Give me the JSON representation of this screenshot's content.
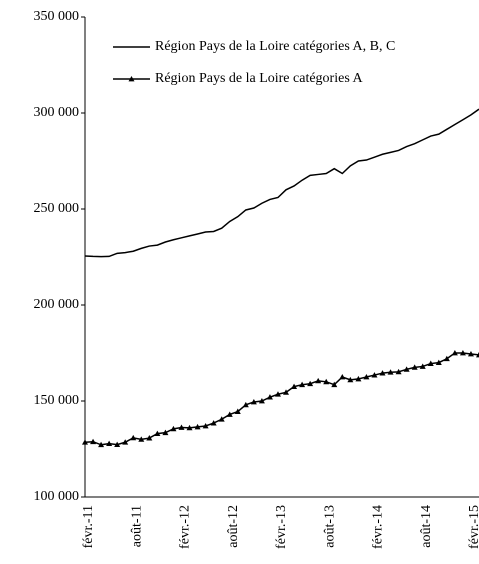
{
  "chart_data": {
    "type": "line",
    "categories": [
      "févr.-11",
      null,
      null,
      null,
      null,
      null,
      "août-11",
      null,
      null,
      null,
      null,
      null,
      "févr.-12",
      null,
      null,
      null,
      null,
      null,
      "août-12",
      null,
      null,
      null,
      null,
      null,
      "févr.-13",
      null,
      null,
      null,
      null,
      null,
      "août-13",
      null,
      null,
      null,
      null,
      null,
      "févr.-14",
      null,
      null,
      null,
      null,
      null,
      "août-14",
      null,
      null,
      null,
      null,
      null,
      "févr.-15",
      null
    ],
    "series": [
      {
        "name": "Région Pays de la Loire catégories A, B, C",
        "color": "#000000",
        "marker": "none",
        "values": [
          225500,
          225300,
          225200,
          225300,
          226900,
          227300,
          228000,
          229500,
          230700,
          231200,
          232800,
          234000,
          235000,
          236000,
          237000,
          238000,
          238300,
          240000,
          243500,
          246000,
          249500,
          250500,
          253000,
          255000,
          256000,
          260000,
          262000,
          265000,
          267500,
          268000,
          268500,
          271000,
          268500,
          272500,
          275000,
          275500,
          277000,
          278500,
          279500,
          280500,
          282500,
          284000,
          286000,
          288000,
          289000,
          291500,
          294000,
          296500,
          299000,
          302000
        ]
      },
      {
        "name": "Région Pays de la Loire catégories A",
        "color": "#000000",
        "marker": "triangle",
        "values": [
          128500,
          128800,
          127200,
          127800,
          127300,
          128500,
          130800,
          130000,
          130700,
          133000,
          133500,
          135500,
          136200,
          136000,
          136500,
          137000,
          138500,
          140500,
          143000,
          144500,
          148000,
          149500,
          150000,
          152000,
          153500,
          154500,
          157500,
          158500,
          159000,
          160500,
          160000,
          158500,
          162500,
          161000,
          161500,
          162500,
          163500,
          164500,
          165000,
          165200,
          166500,
          167500,
          168000,
          169500,
          170000,
          172000,
          175000,
          175000,
          174500,
          174000
        ]
      }
    ],
    "ylim": [
      100000,
      350000
    ],
    "yticks": [
      {
        "value": 100000,
        "label": "100 000"
      },
      {
        "value": 150000,
        "label": "150 000"
      },
      {
        "value": 200000,
        "label": "200 000"
      },
      {
        "value": 250000,
        "label": "250 000"
      },
      {
        "value": 300000,
        "label": "300 000"
      },
      {
        "value": 350000,
        "label": "350 000"
      }
    ],
    "grid": false
  }
}
